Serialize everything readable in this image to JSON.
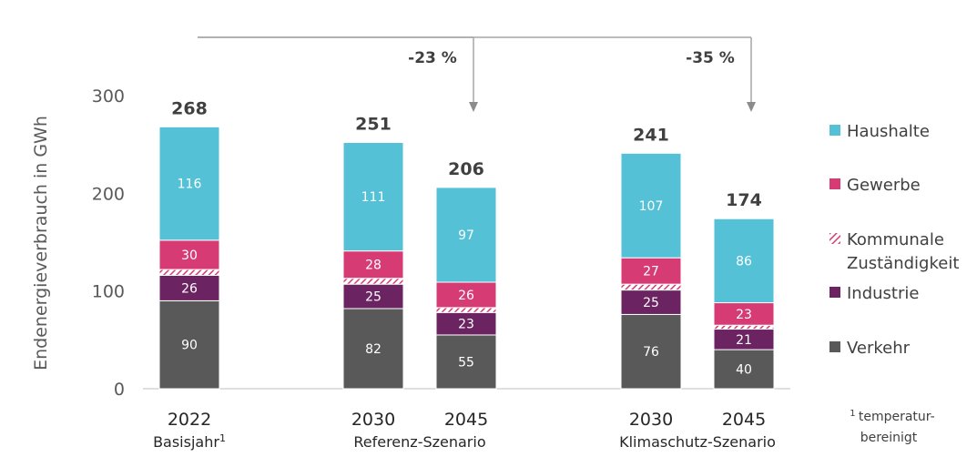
{
  "chart_data": {
    "type": "bar",
    "stacked": true,
    "ylabel": "Endenergieverbrauch in GWh",
    "ylim": [
      0,
      300
    ],
    "yticks": [
      0,
      100,
      200,
      300
    ],
    "grid": false,
    "legend_position": "right",
    "categories": [
      "2022",
      "2030",
      "2045",
      "2030",
      "2045"
    ],
    "category_suffix": [
      "1",
      "",
      "",
      "",
      ""
    ],
    "groups": [
      {
        "label": "Basisjahr",
        "suffix": "1",
        "members": [
          0
        ]
      },
      {
        "label": "Referenz-Szenario",
        "suffix": "",
        "members": [
          1,
          2
        ]
      },
      {
        "label": "Klimaschutz-Szenario",
        "suffix": "",
        "members": [
          3,
          4
        ]
      }
    ],
    "totals": [
      "268",
      "251",
      "206",
      "241",
      "174"
    ],
    "series": [
      {
        "name": "Verkehr",
        "color": "#595959",
        "label_color": "#ffffff",
        "values": [
          90,
          82,
          55,
          76,
          40
        ],
        "labels": [
          "90",
          "82",
          "55",
          "76",
          "40"
        ]
      },
      {
        "name": "Industrie",
        "color": "#6b2461",
        "label_color": "#ffffff",
        "values": [
          26,
          25,
          23,
          25,
          21
        ],
        "labels": [
          "26",
          "25",
          "23",
          "25",
          "21"
        ]
      },
      {
        "name": "Kommunale Zuständigkeit",
        "color": "#d63b73",
        "hatched": true,
        "values": [
          6,
          6,
          5,
          6,
          4
        ],
        "labels": null
      },
      {
        "name": "Gewerbe",
        "color": "#d63b73",
        "label_color": "#ffffff",
        "values": [
          30,
          28,
          26,
          27,
          23
        ],
        "labels": [
          "30",
          "28",
          "26",
          "27",
          "23"
        ]
      },
      {
        "name": "Haushalte",
        "color": "#55c1d6",
        "label_color": "#ffffff",
        "values": [
          116,
          111,
          97,
          107,
          86
        ],
        "labels": [
          "116",
          "111",
          "97",
          "107",
          "86"
        ]
      }
    ],
    "legend_order": [
      "Haushalte",
      "Gewerbe",
      "Kommunale Zuständigkeit",
      "Industrie",
      "Verkehr"
    ],
    "legend_lines": {
      "Haushalte": [
        "Haushalte"
      ],
      "Gewerbe": [
        "Gewerbe"
      ],
      "Kommunale Zuständigkeit": [
        "Kommunale",
        "Zuständigkeit"
      ],
      "Industrie": [
        "Industrie"
      ],
      "Verkehr": [
        "Verkehr"
      ]
    },
    "annotations": [
      {
        "text": "-23 %",
        "from": 0,
        "to": 2
      },
      {
        "text": "-35 %",
        "from": 0,
        "to": 4
      }
    ],
    "footnote": {
      "marker": "1",
      "lines": [
        "temperatur-",
        "bereinigt"
      ]
    }
  }
}
